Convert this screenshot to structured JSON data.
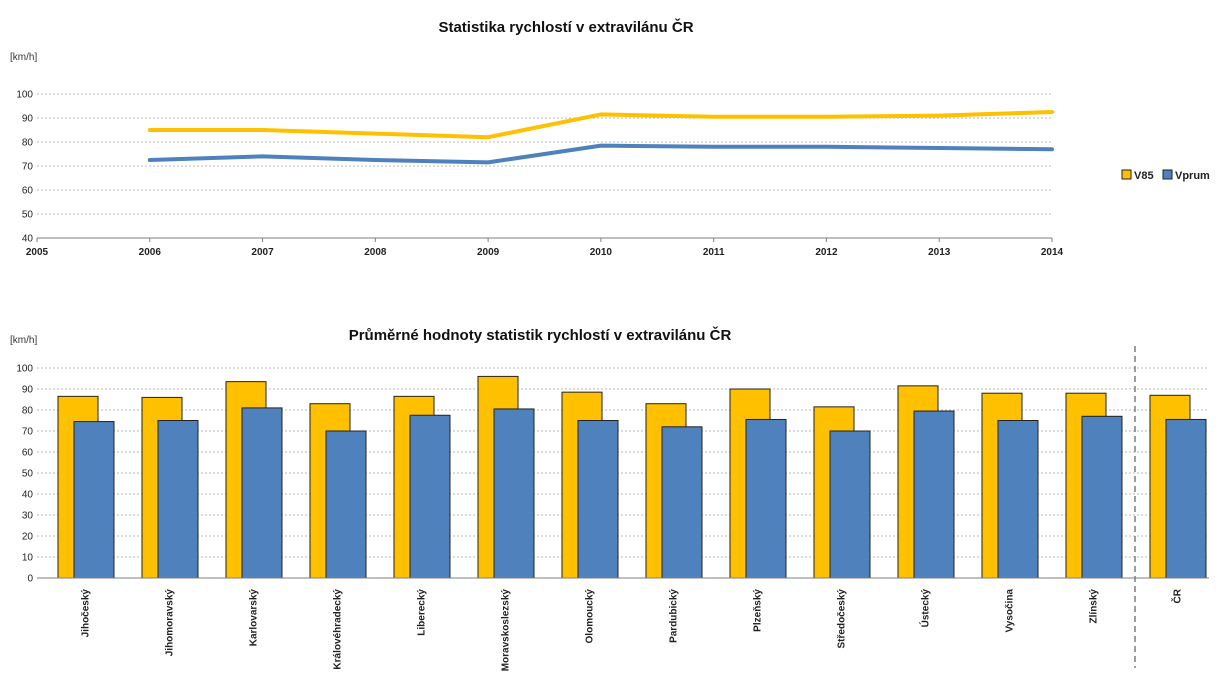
{
  "colors": {
    "V85": "#FFC000",
    "Vprum": "#4F81BD",
    "bar_border": "#222222"
  },
  "chart_data": [
    {
      "type": "line",
      "title": "Statistika rychlostí v extravilánu ČR",
      "ylabel": "[km/h]",
      "xlabel": "",
      "xlim": [
        2005,
        2014
      ],
      "ylim": [
        40,
        100
      ],
      "x_ticks": [
        "2005",
        "2006",
        "2007",
        "2008",
        "2009",
        "2010",
        "2011",
        "2012",
        "2013",
        "2014"
      ],
      "y_ticks": [
        "40",
        "50",
        "60",
        "70",
        "80",
        "90",
        "100"
      ],
      "x": [
        2006,
        2007,
        2008,
        2009,
        2010,
        2011,
        2012,
        2013,
        2014
      ],
      "series": [
        {
          "name": "V85",
          "color": "#FFC000",
          "values": [
            85,
            85,
            83.5,
            82,
            91.5,
            90.5,
            90.5,
            91,
            92.5
          ]
        },
        {
          "name": "Vprum",
          "color": "#4F81BD",
          "values": [
            72.5,
            74,
            72.5,
            71.5,
            78.5,
            78,
            78,
            77.5,
            77
          ]
        }
      ],
      "grid": true,
      "legend": "right"
    },
    {
      "type": "bar",
      "title": "Průměrné hodnoty statistik rychlostí v extravilánu ČR",
      "ylabel": "[km/h]",
      "xlabel": "",
      "ylim": [
        0,
        100
      ],
      "y_ticks": [
        "0",
        "10",
        "20",
        "30",
        "40",
        "50",
        "60",
        "70",
        "80",
        "90",
        "100"
      ],
      "categories": [
        "Jihočeský",
        "Jihomoravský",
        "Karlovarský",
        "Královéhradecký",
        "Liberecký",
        "Moravskoslezský",
        "Olomoucký",
        "Pardubický",
        "Plzeňský",
        "Středočeský",
        "Ústecký",
        "Vysočina",
        "Zlínský",
        "ČR"
      ],
      "series": [
        {
          "name": "V85",
          "color": "#FFC000",
          "values": [
            86.5,
            86,
            93.5,
            83,
            86.5,
            96,
            88.5,
            83,
            90,
            81.5,
            91.5,
            88,
            88,
            87
          ]
        },
        {
          "name": "Vprum",
          "color": "#4F81BD",
          "values": [
            74.5,
            75,
            81,
            70,
            77.5,
            80.5,
            75,
            72,
            75.5,
            70,
            79.5,
            75,
            77,
            75.5
          ]
        }
      ],
      "grid": true,
      "separator_before": "ČR"
    }
  ]
}
